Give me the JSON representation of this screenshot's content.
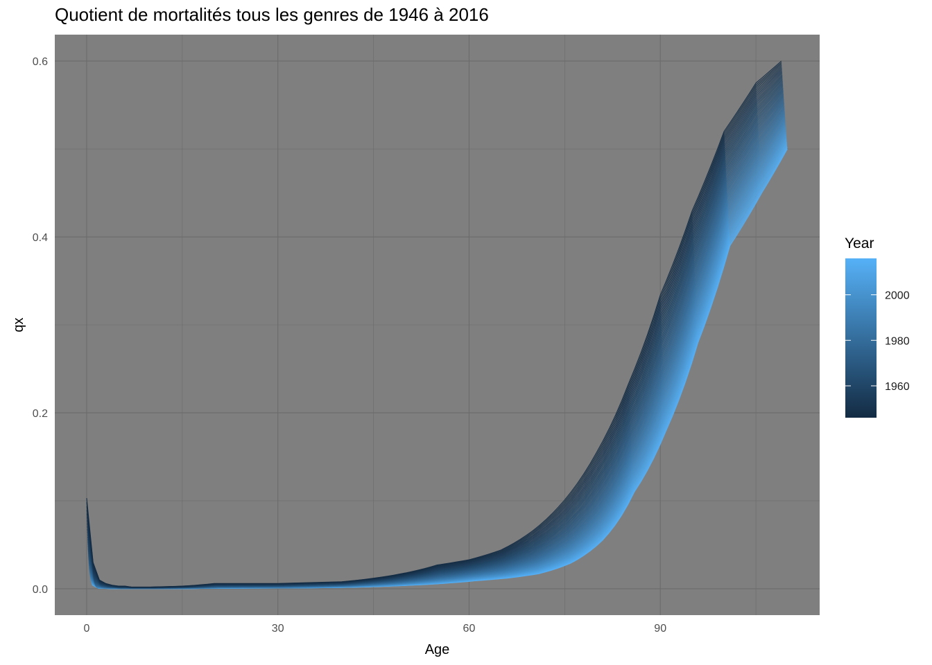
{
  "chart_data": {
    "type": "line",
    "title": "Quotient de mortalités tous les genres de 1946 à 2016",
    "xlabel": "Age",
    "ylabel": "qx",
    "xlim": [
      -5,
      115
    ],
    "ylim": [
      -0.03,
      0.63
    ],
    "x_ticks": [
      0,
      30,
      60,
      90
    ],
    "x_tick_labels": [
      "0",
      "30",
      "60",
      "90"
    ],
    "y_ticks": [
      0.0,
      0.2,
      0.4,
      0.6
    ],
    "y_tick_labels": [
      "0.0",
      "0.2",
      "0.4",
      "0.6"
    ],
    "grid": true,
    "panel_background": "#7f7f7f",
    "grid_color": "#6b6b6b",
    "legend": {
      "title": "Year",
      "position": "right",
      "type": "colorbar",
      "range": [
        1946,
        2016
      ],
      "breaks": [
        1960,
        1980,
        2000
      ],
      "break_labels": [
        "1960",
        "1980",
        "2000"
      ],
      "color_low": "#132b43",
      "color_high": "#56b1f7"
    },
    "year_range": [
      1946,
      2016
    ],
    "ages": [
      0,
      1,
      2,
      3,
      4,
      5,
      6,
      7,
      8,
      9,
      10,
      15,
      20,
      25,
      30,
      35,
      40,
      45,
      50,
      55,
      60,
      65,
      70,
      75,
      80,
      85,
      90,
      95,
      100,
      105,
      109
    ],
    "qx_max_by_age": [
      0.103,
      0.03,
      0.01,
      0.006,
      0.004,
      0.003,
      0.003,
      0.002,
      0.002,
      0.002,
      0.002,
      0.003,
      0.006,
      0.006,
      0.006,
      0.007,
      0.008,
      0.012,
      0.018,
      0.027,
      0.033,
      0.044,
      0.066,
      0.101,
      0.155,
      0.233,
      0.334,
      0.43,
      0.52,
      0.575,
      0.6
    ],
    "qx_min_by_age": [
      0.004,
      0.0004,
      0.0003,
      0.0002,
      0.0002,
      0.0001,
      0.0001,
      0.0001,
      0.0001,
      0.0001,
      0.0001,
      0.0002,
      0.0005,
      0.0006,
      0.0007,
      0.001,
      0.0015,
      0.0025,
      0.004,
      0.006,
      0.009,
      0.012,
      0.017,
      0.029,
      0.055,
      0.11,
      0.18,
      0.28,
      0.39,
      0.45,
      0.5
    ]
  }
}
